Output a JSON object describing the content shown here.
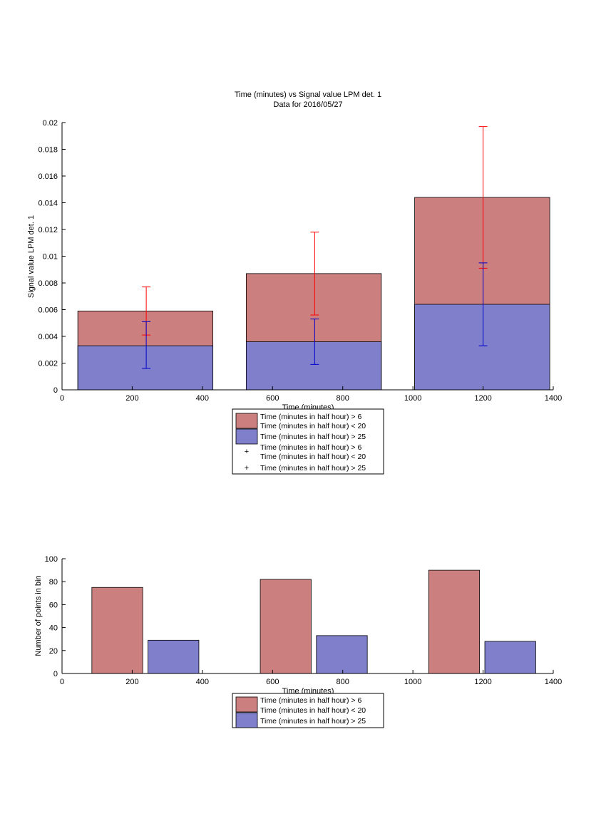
{
  "colors": {
    "red_fill": "#cc7f7f",
    "blue_fill": "#7f7fcc",
    "red_err": "#ff0000",
    "blue_err": "#0000cc"
  },
  "chart_data": [
    {
      "type": "bar",
      "title": "Time (minutes) vs Signal value LPM det. 1",
      "subtitle": "Data for 2016/05/27",
      "xlabel": "Time (minutes)",
      "ylabel": "Signal value LPM det. 1",
      "xlim": [
        0,
        1400
      ],
      "ylim": [
        0,
        0.02
      ],
      "xticks": [
        "0",
        "200",
        "400",
        "600",
        "800",
        "1000",
        "1200",
        "1400"
      ],
      "yticks": [
        "0",
        "0.002",
        "0.004",
        "0.006",
        "0.008",
        "0.01",
        "0.012",
        "0.014",
        "0.016",
        "0.018",
        "0.02"
      ],
      "x": [
        240,
        720,
        1200
      ],
      "bar_ranges": [
        [
          45,
          430
        ],
        [
          525,
          910
        ],
        [
          1005,
          1390
        ]
      ],
      "series": [
        {
          "name": "Time (minutes in half hour) > 6\nTime (minutes in half hour) < 20",
          "values": [
            0.0059,
            0.0087,
            0.0144
          ],
          "err_low": [
            0.0041,
            0.0056,
            0.0091
          ],
          "err_high": [
            0.0077,
            0.0118,
            0.0197
          ]
        },
        {
          "name": "Time (minutes in half hour) > 25",
          "values": [
            0.0033,
            0.0036,
            0.0064
          ],
          "err_low": [
            0.0016,
            0.0019,
            0.0033
          ],
          "err_high": [
            0.0051,
            0.0053,
            0.0095
          ]
        }
      ],
      "legend": {
        "position": "below",
        "entries": [
          "Time (minutes in half hour) > 6",
          "Time (minutes in half hour) < 20",
          "Time (minutes in half hour) > 25",
          "Time (minutes in half hour) > 6",
          "Time (minutes in half hour) < 20",
          "Time (minutes in half hour) > 25"
        ]
      }
    },
    {
      "type": "bar",
      "xlabel": "Time (minutes)",
      "ylabel": "Number of points in bin",
      "xlim": [
        0,
        1400
      ],
      "ylim": [
        0,
        100
      ],
      "xticks": [
        "0",
        "200",
        "400",
        "600",
        "800",
        "1000",
        "1200",
        "1400"
      ],
      "yticks": [
        "0",
        "20",
        "40",
        "60",
        "80",
        "100"
      ],
      "series": [
        {
          "name": "Time (minutes in half hour) > 6\nTime (minutes in half hour) < 20",
          "bar_ranges": [
            [
              85,
              230
            ],
            [
              565,
              710
            ],
            [
              1045,
              1190
            ]
          ],
          "values": [
            75,
            82,
            90
          ]
        },
        {
          "name": "Time (minutes in half hour) > 25",
          "bar_ranges": [
            [
              245,
              390
            ],
            [
              725,
              870
            ],
            [
              1205,
              1350
            ]
          ],
          "values": [
            29,
            33,
            28
          ]
        }
      ],
      "legend": {
        "position": "below",
        "entries": [
          "Time (minutes in half hour) > 6",
          "Time (minutes in half hour) < 20",
          "Time (minutes in half hour) > 25"
        ]
      }
    }
  ]
}
